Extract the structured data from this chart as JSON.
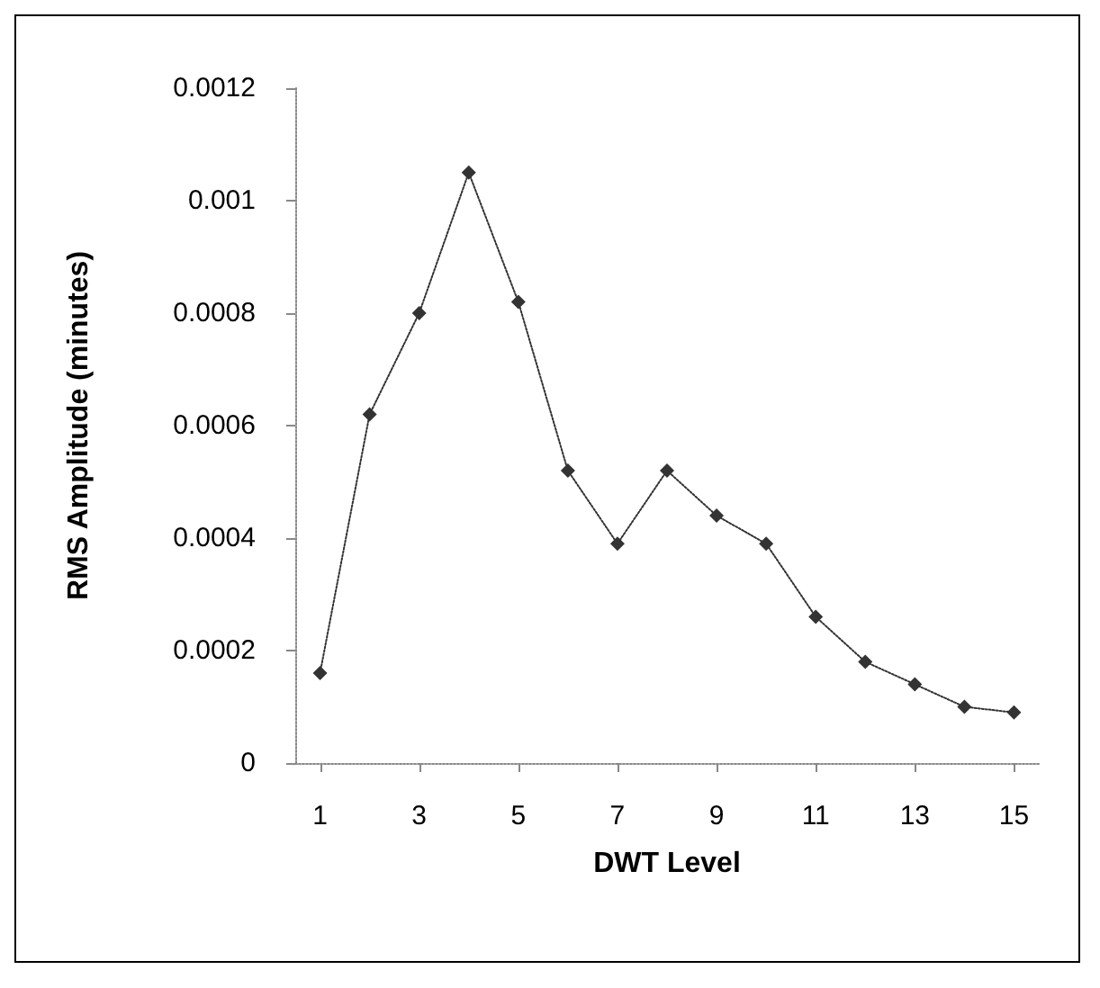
{
  "chart_data": {
    "type": "line",
    "xlabel": "DWT Level",
    "ylabel": "RMS Amplitude (minutes)",
    "x": [
      1,
      2,
      3,
      4,
      5,
      6,
      7,
      8,
      9,
      10,
      11,
      12,
      13,
      14,
      15
    ],
    "series": [
      {
        "color": "#333333",
        "values": [
          0.00016,
          0.00062,
          0.0008,
          0.00105,
          0.00082,
          0.00052,
          0.00039,
          0.00052,
          0.00044,
          0.00039,
          0.00026,
          0.00018,
          0.00014,
          0.0001,
          9e-05
        ]
      }
    ],
    "xlim": [
      0.5,
      15.5
    ],
    "xticks": [
      1,
      3,
      5,
      7,
      9,
      11,
      13,
      15
    ],
    "ylim": [
      0,
      0.0012
    ],
    "yticks": [
      0,
      0.0002,
      0.0004,
      0.0006,
      0.0008,
      0.001,
      0.0012
    ],
    "grid": false,
    "marker": "diamond",
    "line_style": "dotted"
  }
}
